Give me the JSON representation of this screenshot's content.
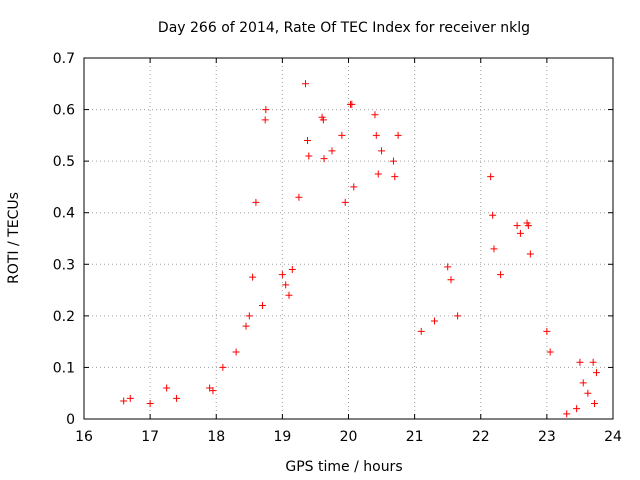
{
  "chart_data": {
    "type": "scatter",
    "title": "Day 266 of 2014, Rate Of TEC Index for receiver nklg",
    "xlabel": "GPS time / hours",
    "ylabel": "ROTI / TECUs",
    "xlim": [
      16,
      24
    ],
    "ylim": [
      0,
      0.7
    ],
    "xticks": [
      "16",
      "17",
      "18",
      "19",
      "20",
      "21",
      "22",
      "23",
      "24"
    ],
    "yticks": [
      "0",
      "0.1",
      "0.2",
      "0.3",
      "0.4",
      "0.5",
      "0.6",
      "0.7"
    ],
    "grid": true,
    "marker": "+",
    "series": [
      {
        "name": "ROTI",
        "color": "#ff0000",
        "points": [
          [
            18.6,
            0.42
          ],
          [
            18.55,
            0.275
          ],
          [
            18.75,
            0.6
          ],
          [
            18.74,
            0.58
          ],
          [
            19.25,
            0.43
          ],
          [
            19.35,
            0.65
          ],
          [
            19.38,
            0.54
          ],
          [
            19.4,
            0.51
          ],
          [
            19.6,
            0.585
          ],
          [
            19.62,
            0.58
          ],
          [
            19.63,
            0.505
          ],
          [
            19.75,
            0.52
          ],
          [
            19.9,
            0.55
          ],
          [
            19.95,
            0.42
          ],
          [
            20.03,
            0.61
          ],
          [
            20.05,
            0.61
          ],
          [
            20.08,
            0.45
          ],
          [
            20.4,
            0.59
          ],
          [
            20.42,
            0.55
          ],
          [
            20.5,
            0.52
          ],
          [
            20.45,
            0.475
          ],
          [
            20.68,
            0.5
          ],
          [
            20.75,
            0.55
          ],
          [
            20.7,
            0.47
          ],
          [
            22.15,
            0.47
          ],
          [
            22.18,
            0.395
          ],
          [
            22.55,
            0.375
          ],
          [
            22.6,
            0.36
          ],
          [
            22.7,
            0.38
          ],
          [
            22.72,
            0.375
          ],
          [
            22.75,
            0.32
          ],
          [
            22.2,
            0.33
          ],
          [
            22.3,
            0.28
          ],
          [
            21.5,
            0.295
          ],
          [
            21.55,
            0.27
          ],
          [
            21.65,
            0.2
          ],
          [
            21.3,
            0.19
          ],
          [
            21.1,
            0.17
          ],
          [
            23.0,
            0.17
          ],
          [
            23.05,
            0.13
          ],
          [
            23.5,
            0.11
          ],
          [
            23.55,
            0.07
          ],
          [
            23.62,
            0.05
          ],
          [
            23.7,
            0.11
          ],
          [
            23.75,
            0.09
          ],
          [
            23.72,
            0.03
          ],
          [
            23.45,
            0.02
          ],
          [
            23.3,
            0.01
          ],
          [
            16.6,
            0.035
          ],
          [
            16.7,
            0.04
          ],
          [
            17.0,
            0.03
          ],
          [
            17.25,
            0.06
          ],
          [
            17.4,
            0.04
          ],
          [
            17.9,
            0.06
          ],
          [
            17.95,
            0.055
          ],
          [
            18.1,
            0.1
          ],
          [
            18.3,
            0.13
          ],
          [
            18.45,
            0.18
          ],
          [
            18.5,
            0.2
          ],
          [
            18.7,
            0.22
          ],
          [
            19.0,
            0.28
          ],
          [
            19.05,
            0.26
          ],
          [
            19.1,
            0.24
          ],
          [
            19.15,
            0.29
          ]
        ]
      }
    ]
  }
}
